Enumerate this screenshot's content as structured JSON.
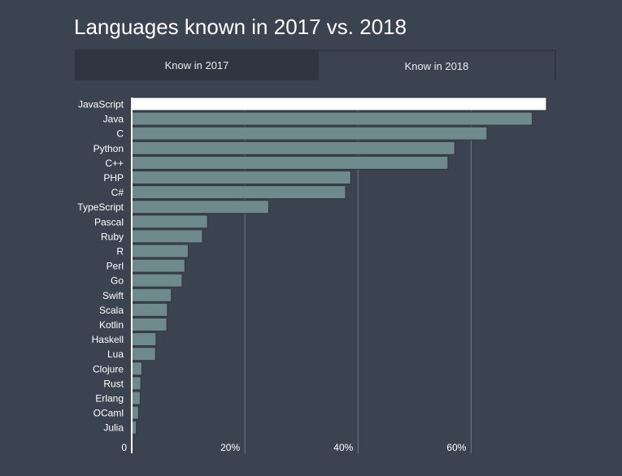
{
  "title": "Languages known in 2017 vs. 2018",
  "tabs": [
    {
      "label": "Know in 2017",
      "active": false
    },
    {
      "label": "Know in 2018",
      "active": true
    }
  ],
  "colors": {
    "background": "#3b4350",
    "bar": "#6f8a8d",
    "highlight_bar": "#ffffff",
    "grid": "#6f7884",
    "text": "#ffffff"
  },
  "chart_data": {
    "type": "bar",
    "orientation": "horizontal",
    "categories": [
      "JavaScript",
      "Java",
      "C",
      "Python",
      "C++",
      "PHP",
      "C#",
      "TypeScript",
      "Pascal",
      "Ruby",
      "R",
      "Perl",
      "Go",
      "Swift",
      "Scala",
      "Kotlin",
      "Haskell",
      "Lua",
      "Clojure",
      "Rust",
      "Erlang",
      "OCaml",
      "Julia"
    ],
    "values": [
      73.3,
      70.8,
      62.8,
      57.1,
      55.9,
      38.7,
      37.8,
      24.2,
      13.4,
      12.5,
      10.0,
      9.4,
      8.9,
      7.0,
      6.3,
      6.2,
      4.3,
      4.2,
      1.8,
      1.6,
      1.5,
      1.2,
      0.8
    ],
    "highlight": "JavaScript",
    "xlim": [
      0,
      73.3
    ],
    "xticks": [
      0,
      20,
      40,
      60
    ],
    "xtick_labels": [
      "0",
      "20%",
      "40%",
      "60%"
    ],
    "grid": true,
    "xlabel": "",
    "ylabel": ""
  }
}
